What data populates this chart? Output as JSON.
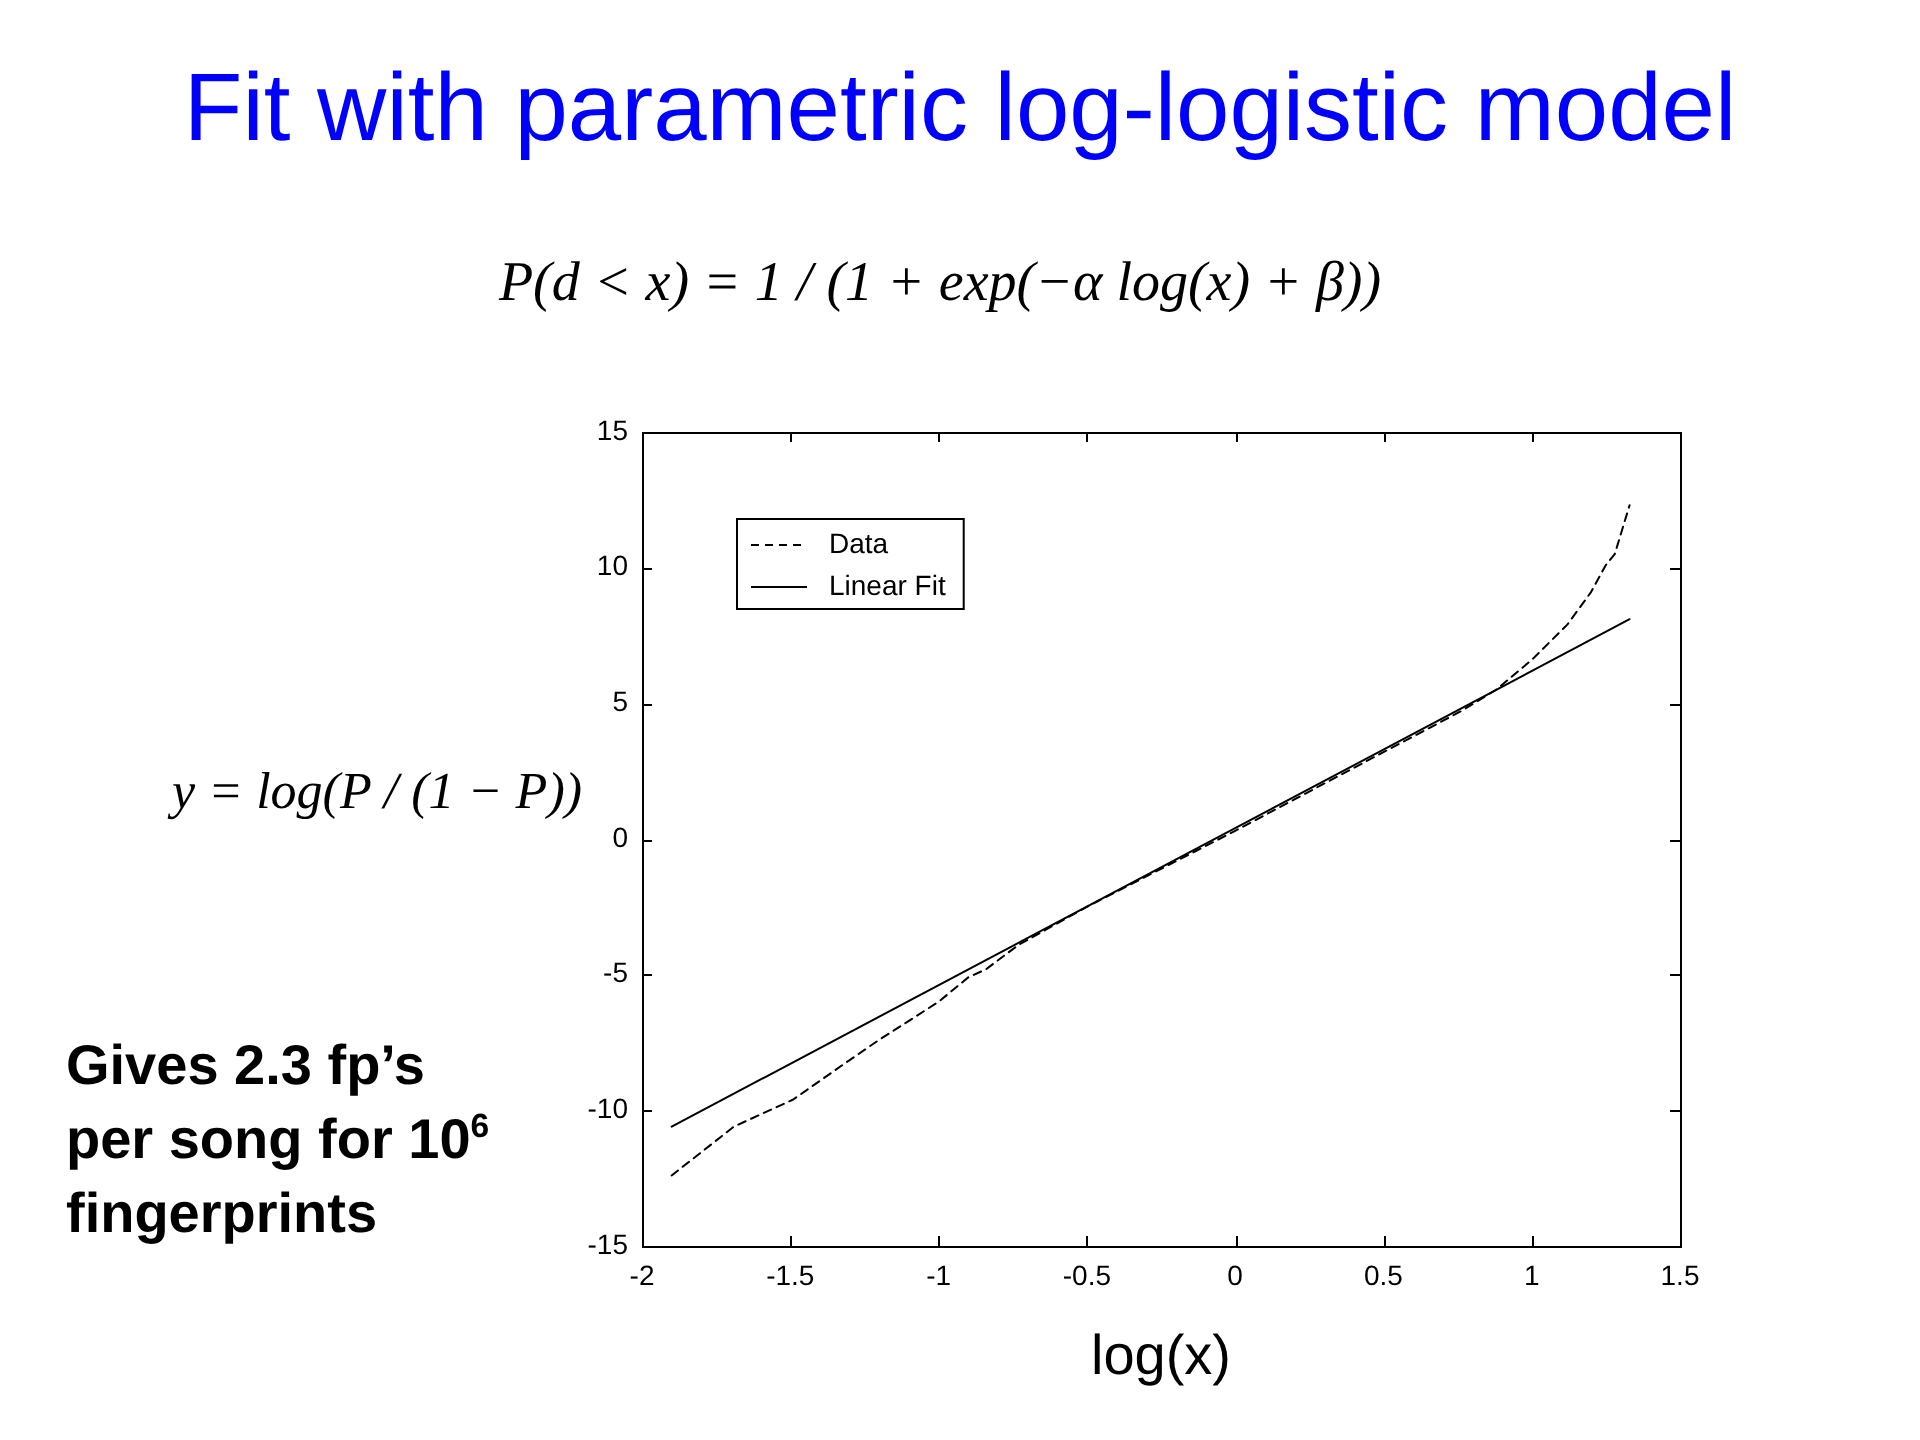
{
  "chart_data": {
    "type": "line",
    "title": "Fit with parametric log-logistic model",
    "xlabel": "log(x)",
    "annotations": [
      "P(d < x) = 1 / (1 + exp(−α log(x) + β))",
      "y = log(P / (1 − P))",
      "Gives 2.3 fp’s per song for 10$^{6}$ fingerprints"
    ],
    "series": [
      {
        "name": "Data",
        "color": "#000000",
        "line_style": "dashed",
        "x": [
          -1.9,
          -1.69,
          -1.49,
          -1.32,
          -1.2,
          -1.0,
          -0.9,
          -0.84,
          -0.73,
          -0.5,
          0,
          0.5,
          0.76,
          0.88,
          1.0,
          1.12,
          1.2,
          1.25,
          1.28,
          1.33
        ],
        "values": [
          -12.4,
          -10.6,
          -9.6,
          -8.3,
          -7.4,
          -6.0,
          -5.1,
          -4.8,
          -3.9,
          -2.5,
          0.3,
          3.2,
          4.7,
          5.5,
          6.6,
          7.9,
          9.1,
          10.1,
          10.5,
          12.3
        ]
      },
      {
        "name": "Linear Fit",
        "color": "#000000",
        "line_style": "solid",
        "x": [
          -1.9,
          1.33
        ],
        "values": [
          -10.6,
          8.1
        ]
      }
    ],
    "xlim": [
      -2,
      1.5
    ],
    "xticks": [
      -2,
      -1.5,
      -1,
      -0.5,
      0,
      0.5,
      1,
      1.5
    ],
    "ylim": [
      -15,
      15
    ],
    "yticks": [
      -15,
      -10,
      -5,
      0,
      5,
      10,
      15
    ],
    "legend": "top left",
    "marker": "none"
  }
}
